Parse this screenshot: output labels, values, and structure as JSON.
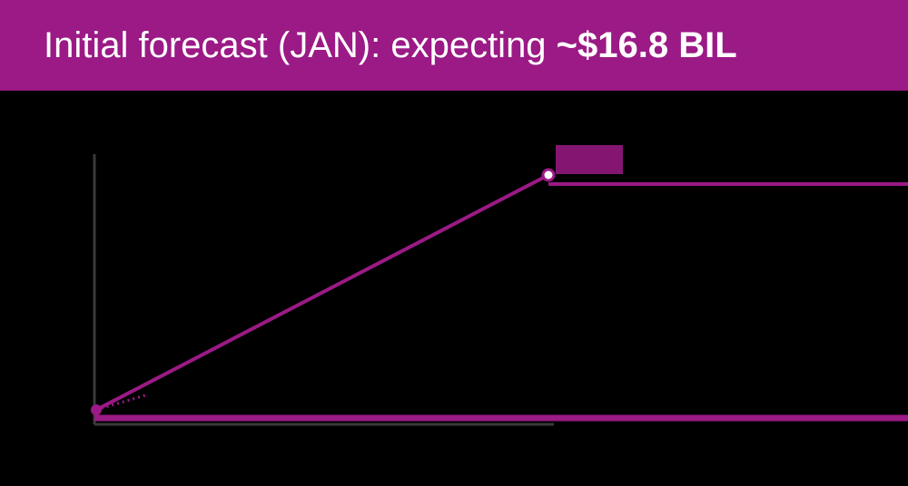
{
  "header": {
    "title_prefix": "Initial forecast (JAN): expecting ",
    "title_value": "~$16.8 BIL"
  },
  "chart_data": {
    "type": "line",
    "series": [
      {
        "color": "#9b1a85",
        "values": [
          1.0,
          16.8
        ]
      }
    ],
    "callout_value": "~$16.8 BIL",
    "highlight_color": "#9b1a85",
    "background": "#000000",
    "grid": false
  }
}
